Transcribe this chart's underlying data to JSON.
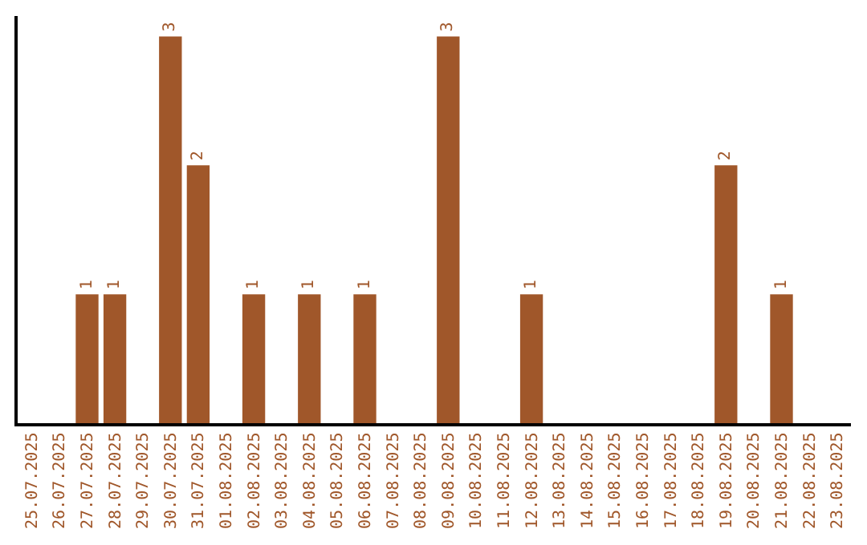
{
  "chart_data": {
    "type": "bar",
    "categories": [
      "25.07.2025",
      "26.07.2025",
      "27.07.2025",
      "28.07.2025",
      "29.07.2025",
      "30.07.2025",
      "31.07.2025",
      "01.08.2025",
      "02.08.2025",
      "03.08.2025",
      "04.08.2025",
      "05.08.2025",
      "06.08.2025",
      "07.08.2025",
      "08.08.2025",
      "09.08.2025",
      "10.08.2025",
      "11.08.2025",
      "12.08.2025",
      "13.08.2025",
      "14.08.2025",
      "15.08.2025",
      "16.08.2025",
      "17.08.2025",
      "18.08.2025",
      "19.08.2025",
      "20.08.2025",
      "21.08.2025",
      "22.08.2025",
      "23.08.2025"
    ],
    "values": [
      0,
      0,
      1,
      1,
      0,
      3,
      2,
      0,
      1,
      0,
      1,
      0,
      1,
      0,
      0,
      3,
      0,
      0,
      1,
      0,
      0,
      0,
      0,
      0,
      0,
      2,
      0,
      1,
      0,
      0
    ],
    "value_labels": [
      null,
      null,
      "1",
      "1",
      null,
      "3",
      "2",
      null,
      "1",
      null,
      "1",
      null,
      "1",
      null,
      null,
      "3",
      null,
      null,
      "1",
      null,
      null,
      null,
      null,
      null,
      null,
      "2",
      null,
      "1",
      null,
      null
    ],
    "color": "#a0572a",
    "legend": false,
    "tick_labels": "x"
  }
}
